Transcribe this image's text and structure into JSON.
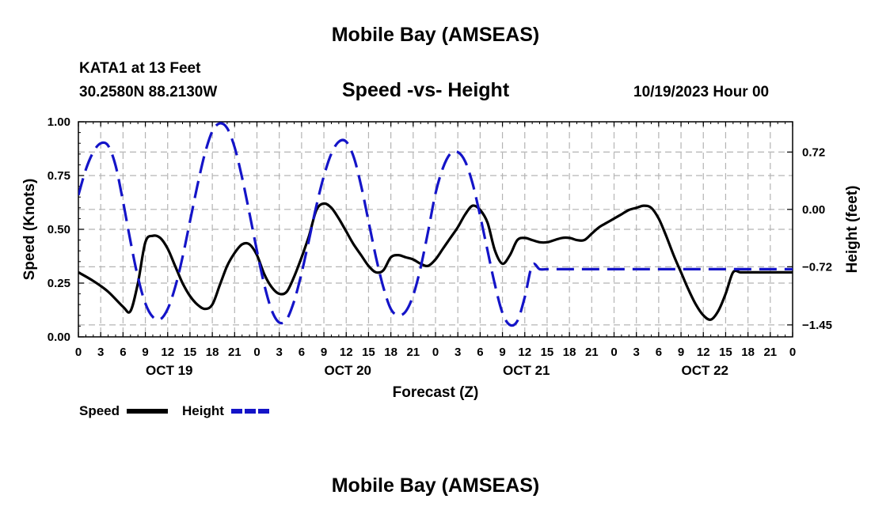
{
  "figure": {
    "title": "Mobile Bay (AMSEAS)",
    "footer_title": "Mobile Bay (AMSEAS)",
    "station": "KATA1 at 13 Feet",
    "coords": "30.2580N  88.2130W",
    "subtitle": "Speed -vs- Height",
    "issued": "10/19/2023 Hour 00"
  },
  "legend": {
    "speed_label": "Speed",
    "height_label": "Height"
  },
  "colors": {
    "speed": "#000000",
    "height": "#1414c8",
    "grid": "#b4b4b4"
  },
  "chart_data": {
    "type": "line",
    "title": "Speed -vs- Height",
    "xlabel": "Forecast (Z)",
    "ylabel": "Speed (Knots)",
    "y2label": "Height (feet)",
    "x_unit": "hours since 10/19/2023 00Z",
    "xlim": [
      0,
      96
    ],
    "ylim": [
      0,
      1
    ],
    "y2lim": [
      -1.6,
      1.1
    ],
    "x_ticks": [
      0,
      3,
      6,
      9,
      12,
      15,
      18,
      21,
      24,
      27,
      30,
      33,
      36,
      39,
      42,
      45,
      48,
      51,
      54,
      57,
      60,
      63,
      66,
      69,
      72,
      75,
      78,
      81,
      84,
      87,
      90,
      93,
      96
    ],
    "x_tick_labels": [
      "0",
      "3",
      "6",
      "9",
      "12",
      "15",
      "18",
      "21",
      "0",
      "3",
      "6",
      "9",
      "12",
      "15",
      "18",
      "21",
      "0",
      "3",
      "6",
      "9",
      "12",
      "15",
      "18",
      "21",
      "0",
      "3",
      "6",
      "9",
      "12",
      "15",
      "18",
      "21",
      "0"
    ],
    "date_labels": [
      {
        "x": 12,
        "label": "OCT 19"
      },
      {
        "x": 36,
        "label": "OCT 20"
      },
      {
        "x": 60,
        "label": "OCT 21"
      },
      {
        "x": 84,
        "label": "OCT 22"
      }
    ],
    "y_ticks": [
      0,
      0.25,
      0.5,
      0.75,
      1.0
    ],
    "y_tick_labels": [
      "0.00",
      "0.25",
      "0.50",
      "0.75",
      "1.00"
    ],
    "y2_ticks": [
      0.72,
      0.0,
      -0.72,
      -1.45
    ],
    "y2_tick_labels": [
      "0.72",
      "0.00",
      "−0.72",
      "−1.45"
    ],
    "grid": true,
    "series": [
      {
        "name": "Speed",
        "axis": "left",
        "style": "solid",
        "x": [
          0,
          2,
          4,
          6,
          7,
          8,
          9,
          10,
          11,
          12,
          13,
          14,
          15,
          16,
          17,
          18,
          19,
          20,
          21,
          22,
          23,
          24,
          25,
          26,
          27,
          28,
          29,
          30,
          31,
          32,
          33,
          34,
          35,
          36,
          37,
          38,
          39,
          40,
          41,
          42,
          43,
          44,
          45,
          46,
          47,
          48,
          49,
          50,
          51,
          52,
          53,
          54,
          55,
          56,
          57,
          58,
          59,
          60,
          61,
          62,
          63,
          64,
          65,
          66,
          67,
          68,
          69,
          70,
          71,
          72,
          73,
          74,
          75,
          76,
          77,
          78,
          79,
          80,
          81,
          82,
          83,
          84,
          85,
          86,
          87,
          88,
          89,
          90,
          91,
          92,
          93,
          94,
          95,
          96
        ],
        "values": [
          0.3,
          0.26,
          0.21,
          0.14,
          0.12,
          0.25,
          0.44,
          0.47,
          0.46,
          0.41,
          0.33,
          0.25,
          0.19,
          0.15,
          0.13,
          0.15,
          0.24,
          0.33,
          0.39,
          0.43,
          0.43,
          0.38,
          0.29,
          0.23,
          0.2,
          0.21,
          0.28,
          0.37,
          0.47,
          0.59,
          0.62,
          0.6,
          0.55,
          0.49,
          0.43,
          0.38,
          0.33,
          0.3,
          0.31,
          0.37,
          0.38,
          0.37,
          0.36,
          0.34,
          0.33,
          0.36,
          0.41,
          0.46,
          0.51,
          0.57,
          0.61,
          0.59,
          0.53,
          0.4,
          0.34,
          0.38,
          0.45,
          0.46,
          0.45,
          0.44,
          0.44,
          0.45,
          0.46,
          0.46,
          0.45,
          0.45,
          0.48,
          0.51,
          0.53,
          0.55,
          0.57,
          0.59,
          0.6,
          0.61,
          0.6,
          0.55,
          0.47,
          0.38,
          0.3,
          0.22,
          0.15,
          0.1,
          0.08,
          0.12,
          0.2,
          0.3,
          0.3,
          0.3,
          0.3,
          0.3,
          0.3,
          0.3,
          0.3,
          0.3
        ]
      },
      {
        "name": "Height",
        "axis": "right",
        "style": "dashed",
        "x": [
          0,
          1,
          2,
          3,
          4,
          5,
          6,
          7,
          8,
          9,
          10,
          11,
          12,
          13,
          14,
          15,
          16,
          17,
          18,
          19,
          20,
          21,
          22,
          23,
          24,
          25,
          26,
          27,
          28,
          29,
          30,
          31,
          32,
          33,
          34,
          35,
          36,
          37,
          38,
          39,
          40,
          41,
          42,
          43,
          44,
          45,
          46,
          47,
          48,
          49,
          50,
          51,
          52,
          53,
          54,
          55,
          56,
          57,
          58,
          59,
          60,
          61,
          62,
          63,
          64,
          65,
          66,
          67,
          68,
          69,
          70,
          71,
          72,
          73,
          74,
          75,
          76,
          77,
          78,
          79,
          80,
          81,
          82,
          83,
          84,
          85,
          86,
          87,
          88,
          89,
          90,
          91,
          92,
          93,
          94,
          95,
          96
        ],
        "values": [
          0.18,
          0.5,
          0.72,
          0.83,
          0.8,
          0.55,
          0.1,
          -0.4,
          -0.85,
          -1.18,
          -1.35,
          -1.38,
          -1.25,
          -0.98,
          -0.6,
          -0.15,
          0.3,
          0.7,
          0.98,
          1.08,
          1.02,
          0.78,
          0.4,
          -0.05,
          -0.52,
          -0.95,
          -1.27,
          -1.42,
          -1.38,
          -1.15,
          -0.8,
          -0.38,
          0.05,
          0.42,
          0.7,
          0.85,
          0.85,
          0.66,
          0.3,
          -0.15,
          -0.6,
          -0.98,
          -1.25,
          -1.33,
          -1.28,
          -1.08,
          -0.73,
          -0.28,
          0.2,
          0.52,
          0.7,
          0.72,
          0.6,
          0.32,
          -0.08,
          -0.52,
          -0.95,
          -1.3,
          -1.45,
          -1.4,
          -1.1,
          -0.7,
          -0.75,
          -0.75,
          -0.75,
          -0.75,
          -0.75,
          -0.75,
          -0.75,
          -0.75,
          -0.75,
          -0.75,
          -0.75,
          -0.75,
          -0.75,
          -0.75,
          -0.75,
          -0.75,
          -0.75,
          -0.75,
          -0.75,
          -0.75,
          -0.75,
          -0.75,
          -0.75,
          -0.75,
          -0.75,
          -0.75,
          -0.75,
          -0.75,
          -0.75,
          -0.75,
          -0.75,
          -0.75,
          -0.75,
          -0.75,
          -0.75
        ]
      }
    ]
  }
}
